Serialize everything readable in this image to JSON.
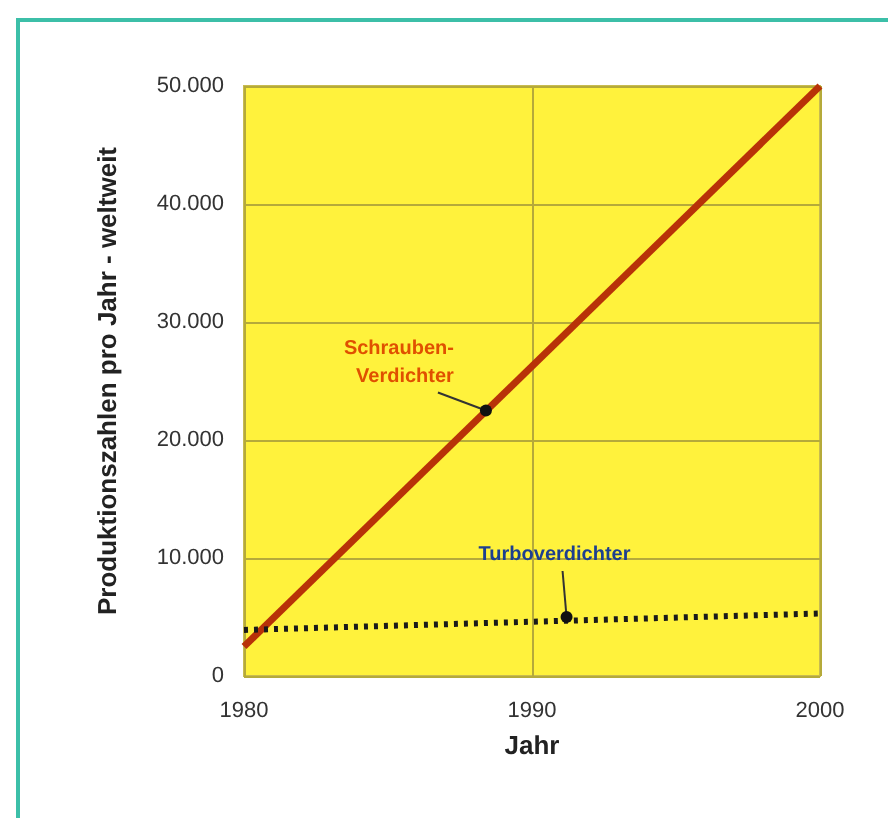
{
  "chart_data": {
    "type": "line",
    "xlabel": "Jahr",
    "ylabel": "Produktionszahlen pro Jahr - weltweit",
    "x": [
      1980,
      2000
    ],
    "xlim": [
      1980,
      2000
    ],
    "xticks": [
      1980,
      1990,
      2000
    ],
    "ylim": [
      0,
      50000
    ],
    "yticks": [
      {
        "value": 0,
        "label": "0"
      },
      {
        "value": 10000,
        "label": "10.000"
      },
      {
        "value": 20000,
        "label": "20.000"
      },
      {
        "value": 30000,
        "label": "30.000"
      },
      {
        "value": 40000,
        "label": "40.000"
      },
      {
        "value": 50000,
        "label": "50.000"
      }
    ],
    "grid": true,
    "marker": "none",
    "series": [
      {
        "color": "#b83208",
        "values": [
          2500,
          50000
        ],
        "line_style": "solid"
      },
      {
        "color": "#1a1a1a",
        "values": [
          3900,
          5300
        ],
        "line_style": "dotted"
      }
    ],
    "annotations": [
      {
        "text": "Schrauben-\nVerdichter",
        "x": 1988.4,
        "y": 22500
      },
      {
        "text": "Turboverdichter",
        "x": 1991.2,
        "y": 5000
      }
    ]
  }
}
